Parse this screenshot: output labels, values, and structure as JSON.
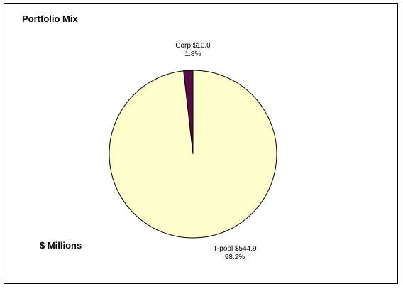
{
  "chart_data": {
    "type": "pie",
    "title": "Portfolio Mix",
    "unit_label": "$ Millions",
    "slices": [
      {
        "label": "Corp",
        "value": 10.0,
        "value_text": "$10.0",
        "percent_text": "1.8%",
        "color": "#5a0a4a"
      },
      {
        "label": "T-pool",
        "value": 544.9,
        "value_text": "$544.9",
        "percent_text": "98.2%",
        "color": "#ffffcc"
      }
    ],
    "start_angle_deg": -90,
    "direction": "counterclockwise",
    "legend": "none"
  }
}
